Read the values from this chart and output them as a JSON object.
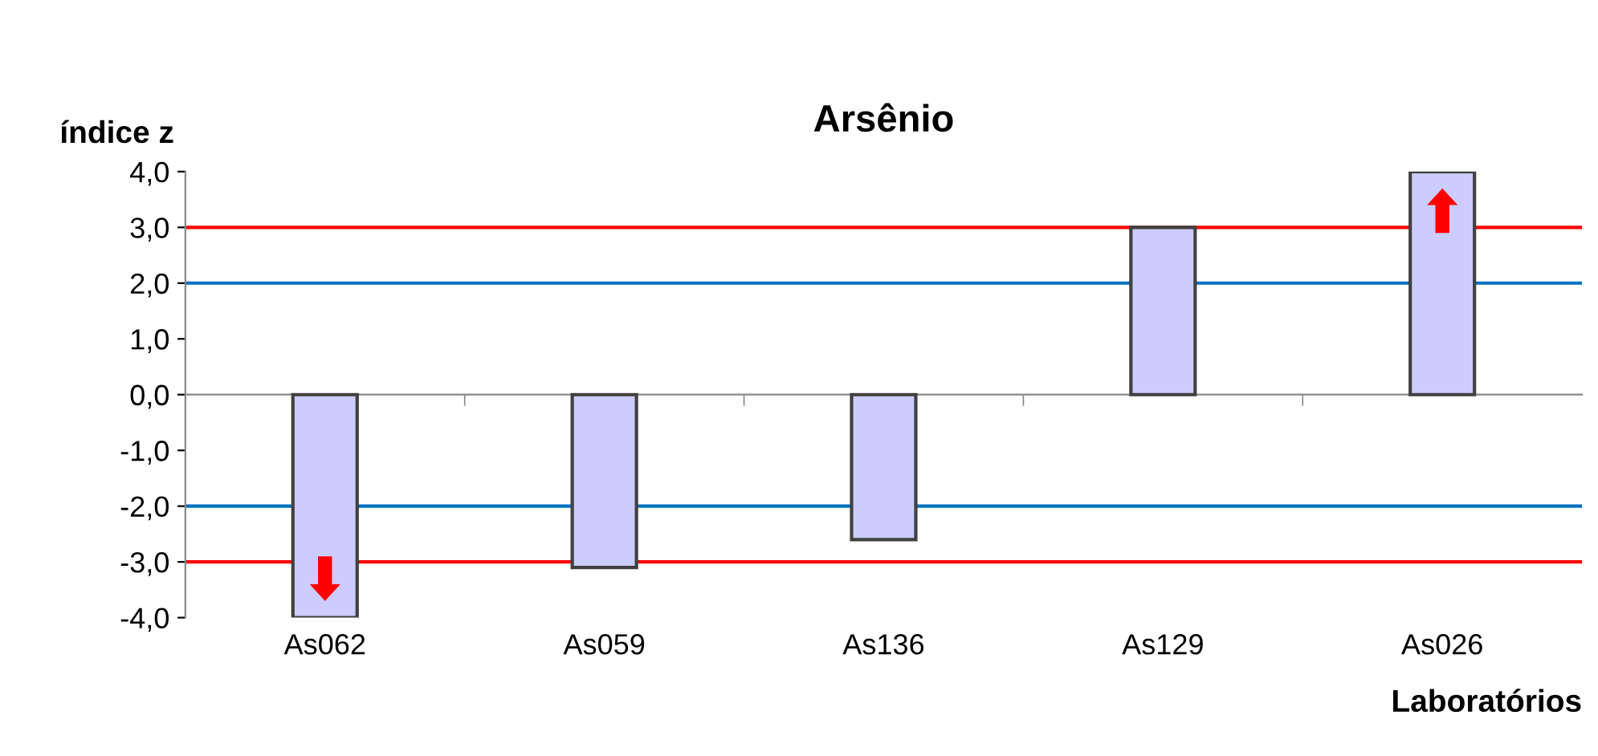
{
  "chart_data": {
    "type": "bar",
    "title": "Arsênio",
    "ylabel": "índice z",
    "xlabel": "Laboratórios",
    "categories": [
      "As062",
      "As059",
      "As136",
      "As129",
      "As026"
    ],
    "values": [
      -4.0,
      -3.1,
      -2.6,
      3.0,
      4.0
    ],
    "color": "#ccccff",
    "ylim": [
      -4,
      4
    ],
    "yticks": [
      {
        "value": 4,
        "label": "4,0"
      },
      {
        "value": 3,
        "label": "3,0"
      },
      {
        "value": 2,
        "label": "2,0"
      },
      {
        "value": 1,
        "label": "1,0"
      },
      {
        "value": 0,
        "label": "0,0"
      },
      {
        "value": -1,
        "label": "-1,0"
      },
      {
        "value": -2,
        "label": "-2,0"
      },
      {
        "value": -3,
        "label": "-3,0"
      },
      {
        "value": -4,
        "label": "-4,0"
      }
    ],
    "ref_lines": [
      {
        "axis": "y",
        "value": 3,
        "color": "#ff0000"
      },
      {
        "axis": "y",
        "value": 2,
        "color": "#0070c0"
      },
      {
        "axis": "y",
        "value": -2,
        "color": "#0070c0"
      },
      {
        "axis": "y",
        "value": -3,
        "color": "#ff0000"
      }
    ],
    "grid": false,
    "legend": false
  }
}
